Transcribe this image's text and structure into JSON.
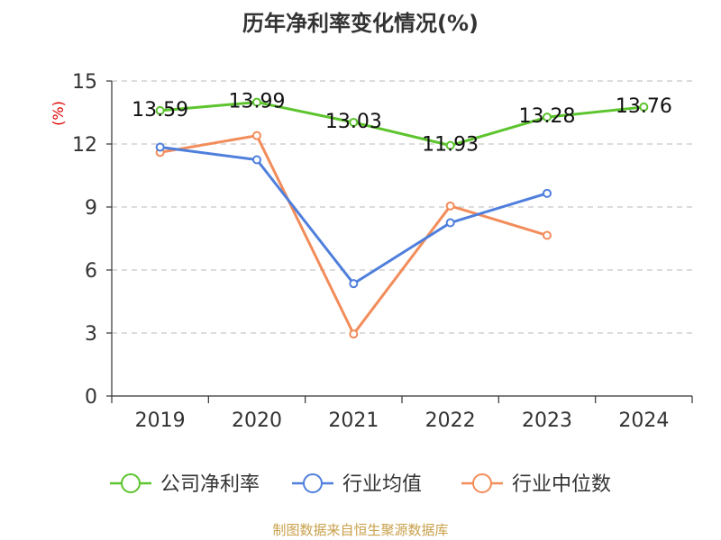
{
  "chart_data": {
    "type": "line",
    "title": "历年净利率变化情况(%)",
    "ylabel": "(%)",
    "ylim": [
      0,
      15
    ],
    "yticks": [
      0,
      3,
      6,
      9,
      12,
      15
    ],
    "categories": [
      "2019",
      "2020",
      "2021",
      "2022",
      "2023",
      "2024"
    ],
    "grid": true,
    "legend_position": "bottom",
    "series": [
      {
        "name": "公司净利率",
        "color": "#5cc42d",
        "show_labels": true,
        "values": [
          13.59,
          13.99,
          13.03,
          11.93,
          13.28,
          13.76
        ]
      },
      {
        "name": "行业均值",
        "color": "#4f7fdc",
        "show_labels": false,
        "values": [
          11.85,
          11.25,
          5.35,
          8.25,
          9.65,
          null
        ]
      },
      {
        "name": "行业中位数",
        "color": "#f28c5a",
        "show_labels": false,
        "values": [
          11.6,
          12.4,
          2.95,
          9.05,
          7.65,
          null
        ]
      }
    ]
  },
  "source": "制图数据来自恒生聚源数据库"
}
